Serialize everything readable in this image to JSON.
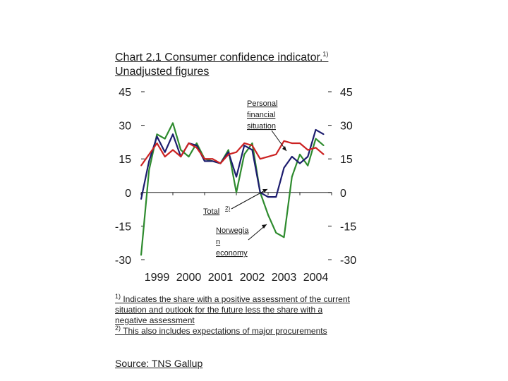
{
  "title": {
    "main": "Chart 2.1  Consumer confidence indicator.",
    "sup": "1)",
    "rest": " Unadjusted figures"
  },
  "chart_data": {
    "type": "line",
    "y_ticks_left": [
      "45",
      "30",
      "15",
      "0",
      "-15",
      "-30"
    ],
    "y_ticks_right": [
      "45",
      "30",
      "15",
      "0",
      "-15",
      "-30"
    ],
    "y_tick_values": [
      45,
      30,
      15,
      0,
      -15,
      -30
    ],
    "ylim": [
      -30,
      45
    ],
    "x_tick_labels": [
      "1999",
      "2000",
      "2001",
      "2002",
      "2003",
      "2004"
    ],
    "xlim": [
      1999,
      2005
    ],
    "annotations": {
      "personal": [
        "Personal",
        "financial",
        "situation"
      ],
      "total": "Total",
      "total_sup": "2)",
      "norwegian": [
        "Norwegia",
        "n",
        "economy"
      ]
    },
    "series": [
      {
        "color": "#2e8b2e",
        "key": "norwegian",
        "x": [
          1999.0,
          1999.25,
          1999.5,
          1999.75,
          2000.0,
          2000.25,
          2000.5,
          2000.75,
          2001.0,
          2001.25,
          2001.5,
          2001.75,
          2002.0,
          2002.25,
          2002.5,
          2002.75,
          2003.0,
          2003.25,
          2003.5,
          2003.75,
          2004.0,
          2004.25,
          2004.5,
          2004.75
        ],
        "values": [
          -28,
          10,
          26,
          24,
          31,
          19,
          16,
          22,
          15,
          14,
          13,
          19,
          0,
          17,
          22,
          0,
          -10,
          -18,
          -20,
          7,
          17,
          12,
          24,
          21
        ]
      },
      {
        "color": "#1c1c6e",
        "key": "total",
        "x": [
          1999.0,
          1999.25,
          1999.5,
          1999.75,
          2000.0,
          2000.25,
          2000.5,
          2000.75,
          2001.0,
          2001.25,
          2001.5,
          2001.75,
          2002.0,
          2002.25,
          2002.5,
          2002.75,
          2003.0,
          2003.25,
          2003.5,
          2003.75,
          2004.0,
          2004.25,
          2004.5,
          2004.75
        ],
        "values": [
          -3,
          14,
          25,
          18,
          26,
          16,
          22,
          21,
          14,
          14,
          13,
          18,
          7,
          21,
          19,
          0,
          -2,
          -2,
          11,
          16,
          13,
          16,
          28,
          26
        ]
      },
      {
        "color": "#cc2222",
        "key": "personal",
        "x": [
          1999.0,
          1999.25,
          1999.5,
          1999.75,
          2000.0,
          2000.25,
          2000.5,
          2000.75,
          2001.0,
          2001.25,
          2001.5,
          2001.75,
          2002.0,
          2002.25,
          2002.5,
          2002.75,
          2003.0,
          2003.25,
          2003.5,
          2003.75,
          2004.0,
          2004.25,
          2004.5,
          2004.75
        ],
        "values": [
          12,
          17,
          22,
          16,
          19,
          16,
          22,
          20,
          15,
          15,
          13,
          17,
          18,
          22,
          21,
          15,
          16,
          17,
          23,
          22,
          22,
          19,
          20,
          17
        ]
      }
    ]
  },
  "footnotes": {
    "fn1_mark": "1)",
    "fn1_text": " Indicates the share with a positive assessment of the current situation and outlook for the future less the share with a negative assessment",
    "fn2_mark": "2)",
    "fn2_text": " This also includes expectations of major procurements"
  },
  "source": "Source: TNS Gallup"
}
